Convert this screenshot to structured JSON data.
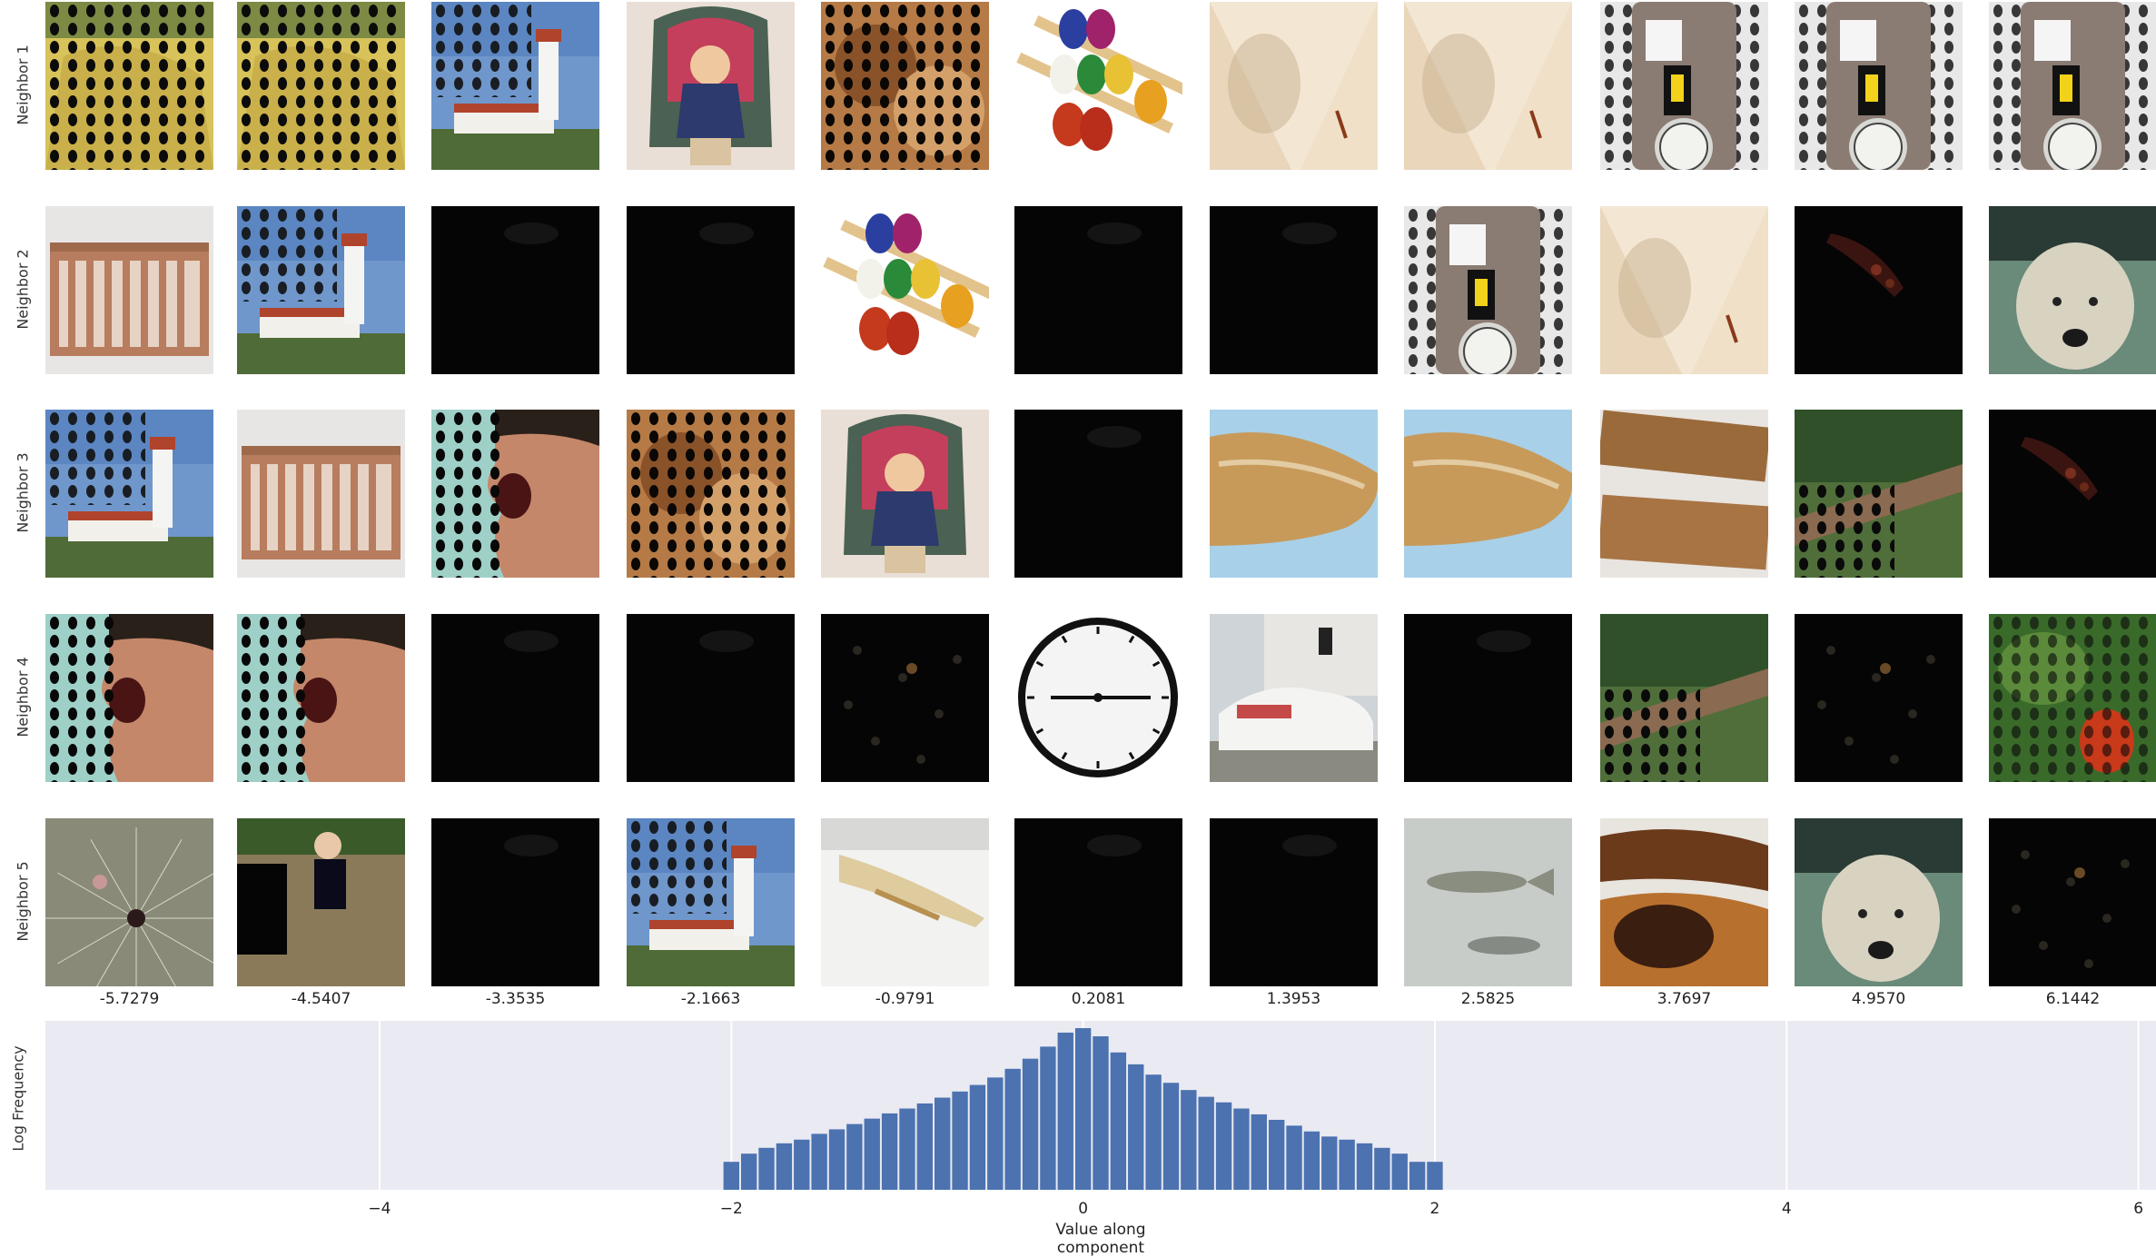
{
  "grid": {
    "row_labels": [
      "Neighbor 1",
      "Neighbor 2",
      "Neighbor 3",
      "Neighbor 4",
      "Neighbor 5"
    ],
    "column_values": [
      "-5.7279",
      "-4.5407",
      "-3.3535",
      "-2.1663",
      "-0.9791",
      "0.2081",
      "1.3953",
      "2.5825",
      "3.7697",
      "4.9570",
      "6.1442"
    ],
    "thumbnails": [
      [
        "patterned-yellow-image",
        "patterned-yellow-image",
        "lighthouse",
        "child-on-throne",
        "patterned-brown-image",
        "abacus-toy",
        "light-sheer-fabric",
        "light-sheer-fabric",
        "parking-meter",
        "parking-meter",
        "parking-meter"
      ],
      [
        "wooden-crib",
        "lighthouse",
        "dark-image",
        "dark-image",
        "abacus-toy",
        "dark-image",
        "dark-image",
        "parking-meter",
        "light-sheer-fabric",
        "dark-red-fragments",
        "shaggy-dog"
      ],
      [
        "lighthouse",
        "wooden-crib",
        "open-mouth-face",
        "patterned-brown-image",
        "child-on-throne",
        "dark-image",
        "butternut-squash",
        "butternut-squash",
        "wooden-rulers",
        "forest-stream",
        "dark-red-fragments"
      ],
      [
        "open-mouth-face",
        "open-mouth-face",
        "dark-image",
        "dark-image",
        "dark-image-speckles",
        "clock-face",
        "white-convertible-car",
        "dark-image",
        "forest-stream",
        "dark-image-speckles",
        "strawberry-plant"
      ],
      [
        "spider-web",
        "toddler-on-floor",
        "dark-image",
        "lighthouse",
        "lacewing-insect",
        "dark-image",
        "dark-image",
        "small-fish",
        "chocolate-tart",
        "shaggy-dog",
        "dark-image-speckles"
      ]
    ]
  },
  "chart_data": {
    "type": "bar",
    "ylabel": "Log Frequency",
    "xlabel": "Value along component",
    "xlim": [
      -5.9,
      6.1
    ],
    "yscale": "log",
    "xticks": [
      -4,
      -2,
      0,
      2,
      4,
      6
    ],
    "xtick_labels": [
      "−4",
      "−2",
      "0",
      "2",
      "4",
      "6"
    ],
    "grid": true,
    "bar_color": "#4c72b0",
    "background": "#eaeaf2",
    "bins_x": [
      -2.0,
      -1.9,
      -1.8,
      -1.7,
      -1.6,
      -1.5,
      -1.4,
      -1.3,
      -1.2,
      -1.1,
      -1.0,
      -0.9,
      -0.8,
      -0.7,
      -0.6,
      -0.5,
      -0.4,
      -0.3,
      -0.2,
      -0.1,
      0.0,
      0.1,
      0.2,
      0.3,
      0.4,
      0.5,
      0.6,
      0.7,
      0.8,
      0.9,
      1.0,
      1.1,
      1.2,
      1.3,
      1.4,
      1.5,
      1.6,
      1.7,
      1.8,
      1.9,
      2.0
    ],
    "values": [
      2,
      3,
      4,
      5,
      6,
      8,
      10,
      13,
      17,
      22,
      28,
      36,
      48,
      65,
      90,
      130,
      200,
      330,
      600,
      1200,
      1500,
      1000,
      450,
      250,
      150,
      100,
      70,
      50,
      38,
      28,
      21,
      16,
      12,
      9,
      7,
      6,
      5,
      4,
      3,
      2,
      2
    ]
  },
  "colors": {
    "dark": "#050505",
    "lighthouse_sky": "#6f97cc",
    "crib": "#b77d5e",
    "squash": "#c79a5a",
    "abacus_red": "#c53a1d",
    "parking_meter": "#8a7b73"
  }
}
